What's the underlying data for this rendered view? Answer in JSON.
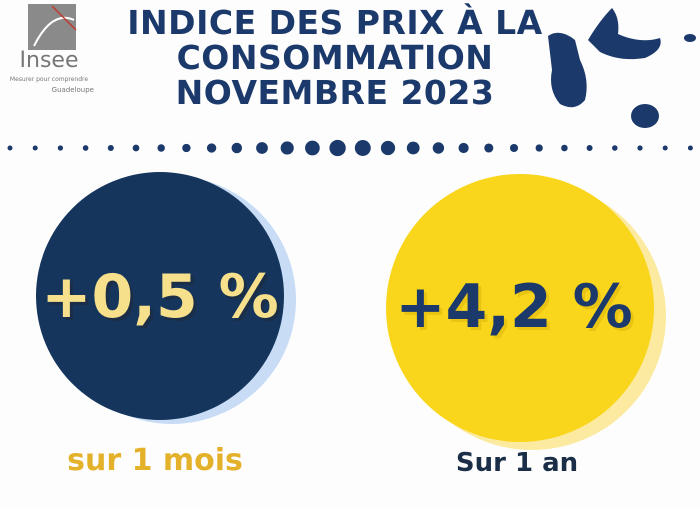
{
  "logo": {
    "name": "Insee",
    "tagline": "Mesurer pour comprendre",
    "region": "Guadeloupe"
  },
  "header": {
    "title_lines": [
      "INDICE DES PRIX À LA",
      "CONSOMMATION",
      "NOVEMBRE 2023"
    ]
  },
  "stats": [
    {
      "value": "+0,5 %",
      "label": "sur 1 mois"
    },
    {
      "value": "+4,2 %",
      "label": "Sur 1 an"
    }
  ]
}
